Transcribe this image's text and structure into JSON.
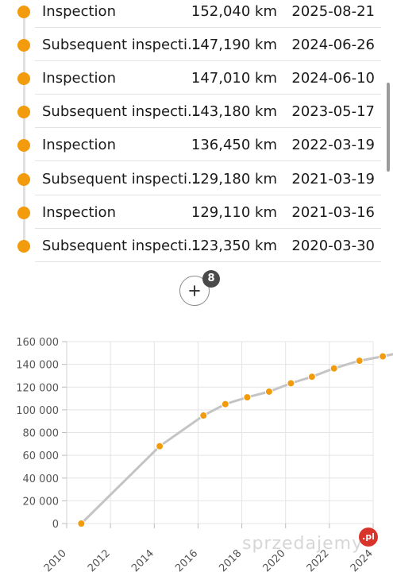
{
  "inspections": [
    {
      "type": "Inspection",
      "km": "152,040 km",
      "date": "2025-08-21"
    },
    {
      "type": "Subsequent inspecti...",
      "km": "147,190 km",
      "date": "2024-06-26"
    },
    {
      "type": "Inspection",
      "km": "147,010 km",
      "date": "2024-06-10"
    },
    {
      "type": "Subsequent inspecti...",
      "km": "143,180 km",
      "date": "2023-05-17"
    },
    {
      "type": "Inspection",
      "km": "136,450 km",
      "date": "2022-03-19"
    },
    {
      "type": "Subsequent inspecti...",
      "km": "129,180 km",
      "date": "2021-03-19"
    },
    {
      "type": "Inspection",
      "km": "129,110 km",
      "date": "2021-03-16"
    },
    {
      "type": "Subsequent inspecti...",
      "km": "123,350 km",
      "date": "2020-03-30"
    }
  ],
  "more_button": {
    "icon": "plus-icon",
    "badge_count": "8"
  },
  "watermark": {
    "text": "sprzedajemy",
    "badge": ".pl"
  },
  "colors": {
    "accent": "#f29b0c",
    "line": "#c4c4c4",
    "grid": "#e4e4e4",
    "badge_red": "#d9342b"
  },
  "chart_data": {
    "type": "line",
    "x": [
      "2010-09-01",
      "2014-04-01",
      "2016-04-01",
      "2017-04-01",
      "2018-04-01",
      "2019-04-01",
      "2020-03-30",
      "2021-03-16",
      "2022-03-19",
      "2023-05-17",
      "2024-06-10",
      "2025-08-21"
    ],
    "y": [
      0,
      68000,
      95000,
      105000,
      111000,
      116000,
      123350,
      129110,
      136450,
      143180,
      147010,
      152040
    ],
    "xlim": [
      2010,
      2024
    ],
    "ylim": [
      0,
      160000
    ],
    "xticks": [
      "2010",
      "2012",
      "2014",
      "2016",
      "2018",
      "2020",
      "2022",
      "2024"
    ],
    "yticks": [
      "0",
      "20 000",
      "40 000",
      "60 000",
      "80 000",
      "100 000",
      "120 000",
      "140 000",
      "160 000"
    ],
    "grid": true,
    "line_color": "#c4c4c4",
    "marker_color": "#f29b0c"
  }
}
